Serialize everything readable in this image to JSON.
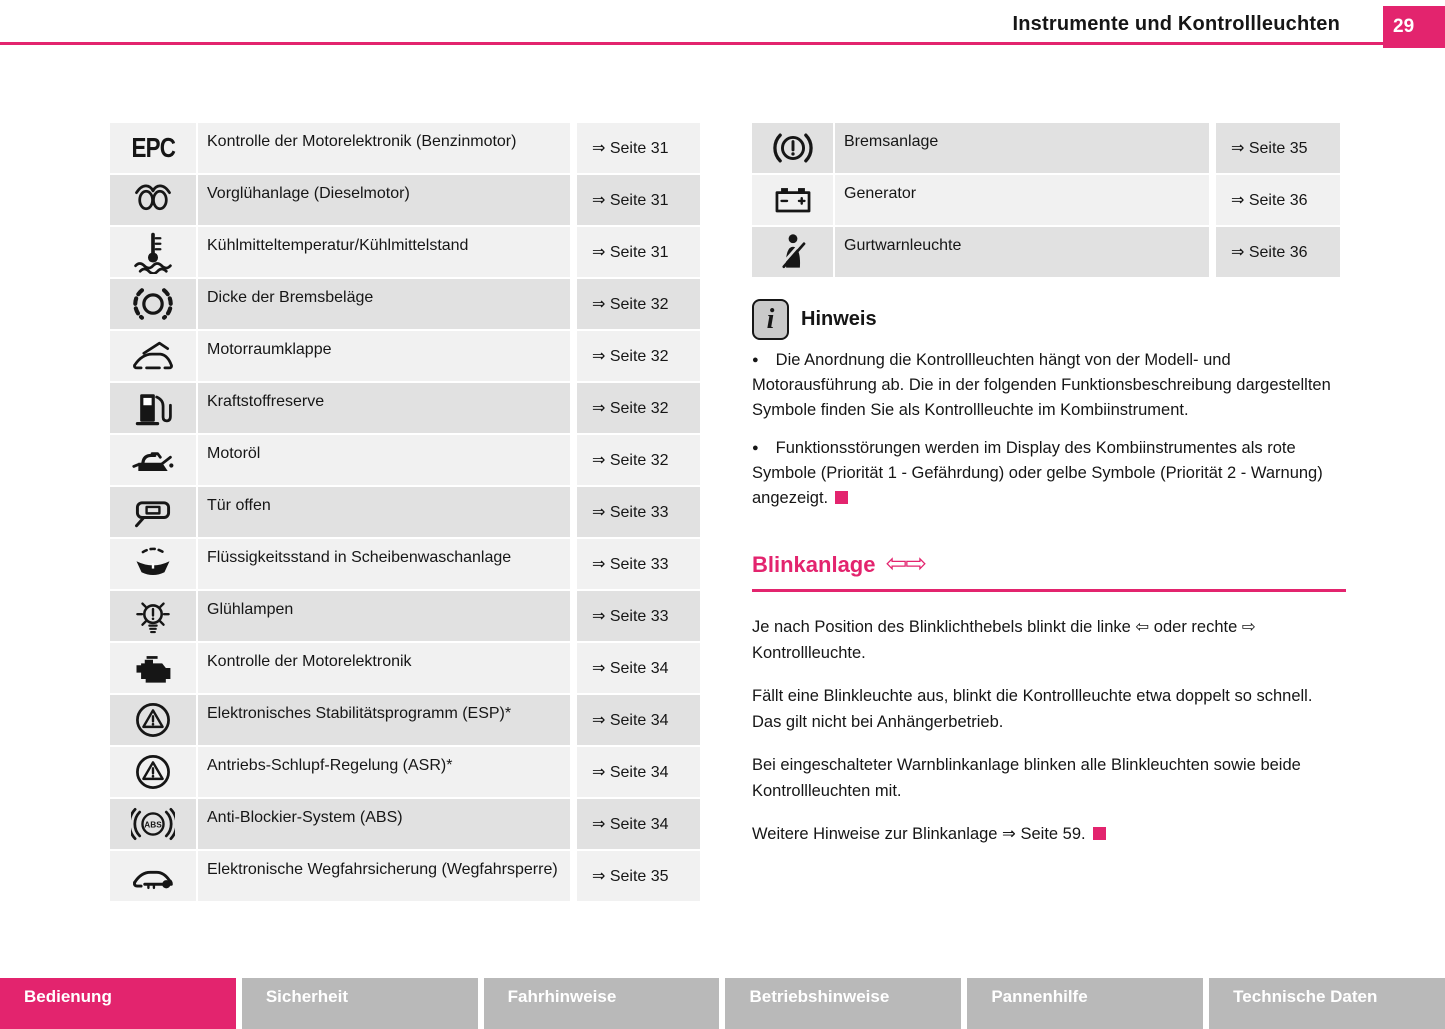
{
  "header": {
    "title": "Instrumente und Kontrollleuchten",
    "page_number": "29"
  },
  "colors": {
    "accent": "#e3246e",
    "row_light": "#f1f1f1",
    "row_dark": "#e1e1e1",
    "footer_gray": "#b9b9b9"
  },
  "left_table": {
    "rows": [
      {
        "icon": "epc-icon",
        "label": "Kontrolle der Motorelektronik (Benzinmotor)",
        "ref": "⇒ Seite 31"
      },
      {
        "icon": "glow-plug-icon",
        "label": "Vorglühanlage (Dieselmotor)",
        "ref": "⇒ Seite 31"
      },
      {
        "icon": "coolant-temperature-icon",
        "label": "Kühlmitteltemperatur/Kühlmittelstand",
        "ref": "⇒ Seite 31"
      },
      {
        "icon": "brake-pads-icon",
        "label": "Dicke der Bremsbeläge",
        "ref": "⇒ Seite 32"
      },
      {
        "icon": "bonnet-icon",
        "label": "Motorraumklappe",
        "ref": "⇒ Seite 32"
      },
      {
        "icon": "fuel-reserve-icon",
        "label": "Kraftstoffreserve",
        "ref": "⇒ Seite 32"
      },
      {
        "icon": "engine-oil-icon",
        "label": "Motoröl",
        "ref": "⇒ Seite 32"
      },
      {
        "icon": "door-open-icon",
        "label": "Tür offen",
        "ref": "⇒ Seite 33"
      },
      {
        "icon": "washer-fluid-icon",
        "label": "Flüssigkeitsstand in Scheibenwaschanlage",
        "ref": "⇒ Seite 33"
      },
      {
        "icon": "bulb-icon",
        "label": "Glühlampen",
        "ref": "⇒ Seite 33"
      },
      {
        "icon": "engine-icon",
        "label": "Kontrolle der Motorelektronik",
        "ref": "⇒ Seite 34"
      },
      {
        "icon": "esp-icon",
        "label": "Elektronisches Stabilitätsprogramm (ESP)*",
        "ref": "⇒ Seite 34"
      },
      {
        "icon": "asr-icon",
        "label": "Antriebs-Schlupf-Regelung (ASR)*",
        "ref": "⇒ Seite 34"
      },
      {
        "icon": "abs-icon",
        "label": "Anti-Blockier-System (ABS)",
        "ref": "⇒ Seite 34"
      },
      {
        "icon": "immobilizer-icon",
        "label": "Elektronische Wegfahrsicherung (Wegfahr­sperre)",
        "ref": "⇒ Seite 35"
      }
    ]
  },
  "right_table": {
    "rows": [
      {
        "icon": "brake-warning-icon",
        "label": "Bremsanlage",
        "ref": "⇒ Seite 35"
      },
      {
        "icon": "battery-icon",
        "label": "Generator",
        "ref": "⇒ Seite 36"
      },
      {
        "icon": "seatbelt-icon",
        "label": "Gurtwarnleuchte",
        "ref": "⇒ Seite 36"
      }
    ]
  },
  "hinweis": {
    "icon": "info-icon",
    "title": "Hinweis",
    "bullet_glyph": "●",
    "bullets": [
      {
        "text": "Die Anordnung die Kontrollleuchten hängt von der Modell- und Motorausführung ab. Die in der folgenden Funktionsbeschreibung dargestellten Symbole finden Sie als Kontrollleuchte im Kombiinstrument.",
        "marker": false
      },
      {
        "text": "Funktionsstörungen werden im Display des Kombiinstrumentes als rote Symbole (Priorität 1 - Gefährdung) oder gelbe Symbole (Priorität 2 - Warnung) angezeigt.",
        "marker": true
      }
    ]
  },
  "blinkanlage": {
    "title": "Blinkanlage",
    "title_arrows": "⇦⇨",
    "paragraphs": [
      {
        "text": "Je nach Position des Blinklichthebels blinkt die linke ⇦ oder rechte ⇨ Kontrollleuchte.",
        "marker": false
      },
      {
        "text": "Fällt eine Blinkleuchte aus, blinkt die Kontrollleuchte etwa doppelt so schnell. Das gilt nicht bei Anhängerbetrieb.",
        "marker": false
      },
      {
        "text": "Bei eingeschalteter Warnblinkanlage blinken alle Blinkleuchten sowie beide Kontrollleuchten mit.",
        "marker": false
      },
      {
        "text": "Weitere Hinweise zur Blinkanlage ⇒ Seite 59.",
        "marker": true
      }
    ]
  },
  "footer": {
    "tabs": [
      {
        "label": "Bedienung",
        "active": true
      },
      {
        "label": "Sicherheit",
        "active": false
      },
      {
        "label": "Fahrhinweise",
        "active": false
      },
      {
        "label": "Betriebshinweise",
        "active": false
      },
      {
        "label": "Pannenhilfe",
        "active": false
      },
      {
        "label": "Technische Daten",
        "active": false
      }
    ]
  }
}
